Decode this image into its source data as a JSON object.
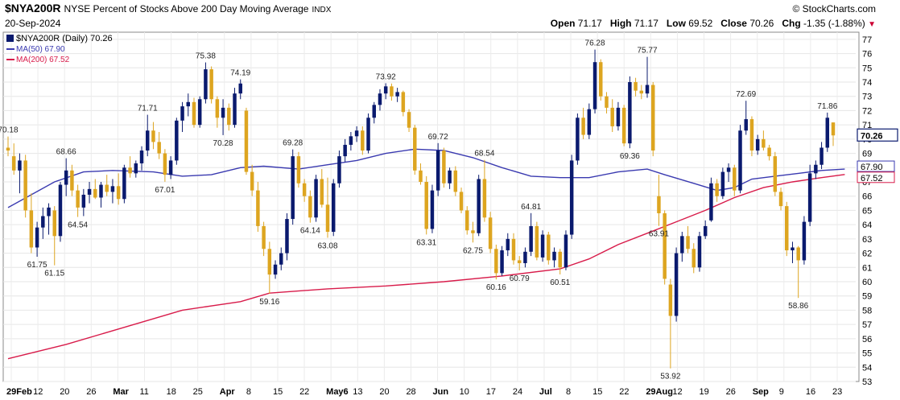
{
  "header": {
    "symbol": "$NYA200R",
    "description": "NYSE Percent of Stocks Above 200 Day Moving Average",
    "exchange": "INDX",
    "brand": "© StockCharts.com",
    "date": "20-Sep-2024",
    "open_label": "Open",
    "open": "71.17",
    "high_label": "High",
    "high": "71.17",
    "low_label": "Low",
    "low": "69.52",
    "close_label": "Close",
    "close": "70.26",
    "chg_label": "Chg",
    "chg": "-1.35 (-1.88%)"
  },
  "legend": {
    "main": "$NYA200R (Daily) 70.26",
    "ma50": "MA(50) 67.90",
    "ma200": "MA(200) 67.52"
  },
  "colors": {
    "up": "#0a1a6e",
    "down": "#dda520",
    "ma50": "#3a3ab0",
    "ma200": "#d81b4a",
    "last_box": "#0a1a6e",
    "ma50_box": "#3a3ab0",
    "ma200_box": "#d81b4a"
  },
  "chart_data": {
    "type": "candlestick",
    "ylim": [
      53,
      77.5
    ],
    "y_ticks": [
      53,
      54,
      55,
      56,
      57,
      58,
      59,
      60,
      61,
      62,
      63,
      64,
      65,
      66,
      67,
      68,
      69,
      70,
      71,
      72,
      73,
      74,
      75,
      76,
      77
    ],
    "x_tick_labels": [
      "29Feb",
      "12",
      "20",
      "26",
      "Mar",
      "11",
      "18",
      "25",
      "Apr",
      "8",
      "15",
      "22",
      "May6",
      "13",
      "20",
      "28",
      "Jun",
      "10",
      "17",
      "24",
      "Jul",
      "8",
      "15",
      "22",
      "29Aug",
      "12",
      "19",
      "26",
      "Sep",
      "9",
      "16",
      "23"
    ],
    "right_tags": [
      {
        "text": "70.26",
        "value": 70.26,
        "kind": "last"
      },
      {
        "text": "67.90",
        "value": 67.9,
        "kind": "ma50"
      },
      {
        "text": "67.52",
        "value": 67.52,
        "kind": "ma200"
      }
    ],
    "annotations": [
      {
        "text": "70.18",
        "value": 70.18
      },
      {
        "text": "61.75",
        "value": 61.75
      },
      {
        "text": "68.66",
        "value": 68.66
      },
      {
        "text": "61.15",
        "value": 61.15
      },
      {
        "text": "64.54",
        "value": 64.54
      },
      {
        "text": "71.71",
        "value": 71.71
      },
      {
        "text": "67.01",
        "value": 67.01
      },
      {
        "text": "75.38",
        "value": 75.38
      },
      {
        "text": "74.19",
        "value": 74.19
      },
      {
        "text": "70.28",
        "value": 70.28
      },
      {
        "text": "59.16",
        "value": 59.16
      },
      {
        "text": "69.28",
        "value": 69.28
      },
      {
        "text": "64.14",
        "value": 64.14
      },
      {
        "text": "63.08",
        "value": 63.08
      },
      {
        "text": "73.92",
        "value": 73.92
      },
      {
        "text": "63.31",
        "value": 63.31
      },
      {
        "text": "69.72",
        "value": 69.72
      },
      {
        "text": "68.54",
        "value": 68.54
      },
      {
        "text": "62.75",
        "value": 62.75
      },
      {
        "text": "60.16",
        "value": 60.16
      },
      {
        "text": "64.81",
        "value": 64.81
      },
      {
        "text": "60.79",
        "value": 60.79
      },
      {
        "text": "60.51",
        "value": 60.51
      },
      {
        "text": "76.28",
        "value": 76.28
      },
      {
        "text": "75.77",
        "value": 75.77
      },
      {
        "text": "69.36",
        "value": 69.36
      },
      {
        "text": "63.91",
        "value": 63.91
      },
      {
        "text": "53.92",
        "value": 53.92
      },
      {
        "text": "72.69",
        "value": 72.69
      },
      {
        "text": "58.86",
        "value": 58.86
      },
      {
        "text": "71.86",
        "value": 71.86
      }
    ],
    "candles": [
      [
        69.4,
        70.18,
        68.8,
        69.2
      ],
      [
        68.8,
        69.7,
        67.5,
        67.8
      ],
      [
        67.8,
        69.0,
        66.2,
        68.5
      ],
      [
        68.5,
        68.9,
        64.5,
        65.0
      ],
      [
        65.0,
        66.2,
        62.0,
        62.4
      ],
      [
        62.4,
        64.2,
        61.75,
        63.8
      ],
      [
        63.8,
        65.2,
        63.0,
        64.6
      ],
      [
        64.6,
        65.5,
        63.3,
        65.2
      ],
      [
        65.0,
        65.3,
        61.15,
        63.2
      ],
      [
        63.2,
        67.0,
        62.8,
        66.8
      ],
      [
        66.8,
        68.66,
        66.0,
        67.8
      ],
      [
        67.8,
        68.2,
        66.0,
        66.4
      ],
      [
        66.4,
        66.8,
        64.54,
        65.2
      ],
      [
        65.2,
        66.5,
        64.6,
        66.1
      ],
      [
        66.1,
        67.0,
        65.5,
        66.5
      ],
      [
        66.5,
        67.2,
        65.8,
        65.9
      ],
      [
        65.9,
        67.0,
        65.2,
        66.8
      ],
      [
        66.8,
        67.5,
        66.0,
        66.3
      ],
      [
        66.3,
        67.2,
        65.5,
        66.7
      ],
      [
        66.7,
        67.6,
        65.4,
        65.8
      ],
      [
        65.8,
        68.2,
        65.5,
        68.0
      ],
      [
        68.0,
        68.8,
        67.3,
        67.6
      ],
      [
        67.6,
        68.5,
        67.3,
        68.3
      ],
      [
        68.3,
        69.5,
        67.8,
        69.2
      ],
      [
        69.2,
        71.71,
        68.8,
        70.6
      ],
      [
        70.6,
        71.2,
        69.3,
        69.8
      ],
      [
        69.8,
        70.5,
        68.6,
        69.0
      ],
      [
        69.0,
        69.3,
        67.01,
        67.5
      ],
      [
        67.5,
        68.8,
        67.2,
        68.5
      ],
      [
        68.5,
        71.5,
        68.2,
        71.3
      ],
      [
        71.3,
        72.6,
        70.5,
        72.3
      ],
      [
        72.3,
        73.2,
        71.6,
        72.6
      ],
      [
        72.6,
        72.9,
        70.8,
        71.0
      ],
      [
        71.0,
        73.0,
        70.8,
        72.8
      ],
      [
        72.8,
        75.38,
        72.5,
        74.9
      ],
      [
        74.9,
        75.1,
        72.5,
        72.8
      ],
      [
        72.8,
        73.0,
        70.8,
        71.5
      ],
      [
        71.5,
        72.8,
        70.28,
        72.2
      ],
      [
        72.2,
        72.5,
        70.6,
        71.0
      ],
      [
        71.0,
        73.6,
        70.8,
        73.2
      ],
      [
        73.2,
        74.19,
        72.8,
        73.9
      ],
      [
        72.0,
        72.2,
        67.5,
        67.7
      ],
      [
        67.7,
        68.2,
        66.0,
        66.4
      ],
      [
        66.4,
        67.0,
        63.5,
        63.9
      ],
      [
        63.9,
        64.2,
        61.8,
        62.3
      ],
      [
        62.3,
        62.8,
        59.16,
        60.5
      ],
      [
        60.5,
        61.5,
        60.2,
        61.2
      ],
      [
        61.2,
        62.4,
        60.8,
        62.0
      ],
      [
        62.0,
        64.8,
        61.5,
        64.4
      ],
      [
        64.4,
        69.28,
        64.0,
        68.8
      ],
      [
        68.8,
        69.1,
        66.6,
        66.9
      ],
      [
        66.9,
        67.2,
        65.6,
        66.0
      ],
      [
        66.0,
        66.4,
        64.14,
        64.5
      ],
      [
        64.5,
        67.5,
        64.2,
        67.2
      ],
      [
        67.2,
        67.9,
        65.2,
        65.4
      ],
      [
        65.4,
        67.3,
        63.08,
        63.5
      ],
      [
        63.5,
        67.2,
        63.2,
        66.9
      ],
      [
        66.9,
        69.2,
        66.6,
        68.8
      ],
      [
        68.8,
        70.0,
        68.4,
        69.6
      ],
      [
        69.6,
        70.5,
        69.2,
        70.2
      ],
      [
        70.2,
        70.9,
        69.8,
        70.6
      ],
      [
        70.6,
        70.9,
        68.9,
        69.2
      ],
      [
        69.2,
        71.8,
        69.0,
        71.5
      ],
      [
        71.5,
        72.6,
        71.1,
        72.4
      ],
      [
        72.4,
        73.5,
        72.0,
        73.2
      ],
      [
        73.2,
        73.92,
        72.8,
        73.7
      ],
      [
        73.7,
        73.9,
        72.7,
        73.0
      ],
      [
        73.0,
        73.6,
        72.6,
        73.3
      ],
      [
        73.3,
        73.4,
        71.6,
        71.9
      ],
      [
        71.9,
        72.1,
        70.5,
        70.8
      ],
      [
        70.8,
        71.0,
        67.5,
        67.8
      ],
      [
        67.8,
        68.3,
        66.8,
        67.0
      ],
      [
        67.0,
        67.4,
        63.31,
        63.7
      ],
      [
        63.7,
        66.8,
        63.4,
        66.4
      ],
      [
        66.4,
        69.72,
        66.0,
        69.2
      ],
      [
        69.2,
        69.4,
        66.6,
        66.9
      ],
      [
        66.9,
        68.0,
        66.5,
        67.8
      ],
      [
        67.8,
        68.1,
        66.0,
        66.3
      ],
      [
        66.3,
        66.6,
        64.8,
        65.0
      ],
      [
        65.0,
        65.3,
        63.3,
        63.6
      ],
      [
        63.6,
        64.2,
        62.75,
        63.4
      ],
      [
        63.4,
        67.5,
        63.2,
        67.2
      ],
      [
        67.2,
        68.54,
        64.2,
        64.5
      ],
      [
        64.5,
        64.9,
        62.0,
        62.3
      ],
      [
        62.3,
        62.6,
        60.16,
        60.6
      ],
      [
        60.6,
        62.5,
        60.4,
        62.2
      ],
      [
        62.2,
        63.4,
        61.8,
        63.0
      ],
      [
        63.0,
        63.4,
        61.2,
        61.5
      ],
      [
        61.5,
        61.8,
        60.79,
        61.3
      ],
      [
        61.3,
        62.4,
        61.0,
        62.1
      ],
      [
        62.1,
        64.81,
        61.8,
        63.9
      ],
      [
        63.9,
        64.2,
        61.5,
        61.7
      ],
      [
        61.7,
        63.6,
        61.4,
        63.3
      ],
      [
        63.3,
        63.5,
        61.2,
        61.5
      ],
      [
        61.5,
        62.4,
        61.0,
        62.1
      ],
      [
        62.1,
        62.3,
        60.51,
        61.0
      ],
      [
        61.0,
        63.6,
        60.8,
        63.3
      ],
      [
        63.3,
        68.9,
        63.0,
        68.5
      ],
      [
        68.5,
        71.8,
        68.2,
        71.5
      ],
      [
        71.5,
        72.2,
        70.0,
        70.3
      ],
      [
        70.3,
        72.5,
        70.0,
        72.1
      ],
      [
        72.1,
        76.28,
        71.8,
        75.4
      ],
      [
        75.4,
        75.6,
        72.7,
        73.0
      ],
      [
        73.0,
        73.3,
        71.8,
        72.2
      ],
      [
        72.2,
        72.8,
        70.5,
        70.9
      ],
      [
        70.9,
        72.6,
        70.6,
        72.2
      ],
      [
        72.2,
        72.4,
        69.5,
        69.7
      ],
      [
        69.7,
        74.4,
        69.36,
        74.0
      ],
      [
        74.0,
        74.3,
        73.0,
        73.4
      ],
      [
        73.4,
        73.8,
        72.8,
        73.2
      ],
      [
        73.2,
        75.77,
        72.9,
        73.8
      ],
      [
        73.8,
        74.0,
        68.8,
        69.2
      ],
      [
        66.0,
        67.5,
        63.91,
        64.8
      ],
      [
        64.8,
        65.0,
        59.8,
        60.2
      ],
      [
        59.8,
        60.2,
        53.92,
        57.6
      ],
      [
        57.6,
        62.4,
        57.2,
        62.0
      ],
      [
        62.0,
        63.5,
        61.4,
        63.2
      ],
      [
        63.2,
        63.9,
        62.0,
        62.3
      ],
      [
        62.3,
        62.7,
        60.6,
        61.0
      ],
      [
        61.0,
        63.5,
        60.7,
        63.2
      ],
      [
        63.2,
        64.3,
        63.0,
        63.9
      ],
      [
        64.3,
        67.3,
        64.2,
        66.9
      ],
      [
        66.9,
        67.2,
        65.6,
        66.0
      ],
      [
        66.0,
        68.0,
        65.8,
        67.7
      ],
      [
        67.7,
        68.3,
        67.0,
        68.0
      ],
      [
        68.0,
        68.2,
        66.0,
        66.4
      ],
      [
        66.4,
        71.0,
        66.2,
        70.6
      ],
      [
        70.6,
        72.69,
        70.3,
        71.4
      ],
      [
        71.4,
        71.6,
        68.8,
        69.2
      ],
      [
        69.2,
        70.3,
        68.9,
        70.0
      ],
      [
        70.0,
        70.6,
        69.2,
        69.4
      ],
      [
        69.4,
        69.6,
        68.5,
        68.8
      ],
      [
        68.8,
        69.1,
        66.0,
        66.3
      ],
      [
        66.3,
        66.6,
        65.0,
        65.3
      ],
      [
        65.3,
        65.6,
        61.8,
        62.2
      ],
      [
        62.2,
        62.8,
        61.3,
        62.4
      ],
      [
        62.4,
        62.5,
        58.86,
        61.5
      ],
      [
        61.5,
        64.6,
        61.2,
        64.2
      ],
      [
        64.2,
        68.2,
        63.9,
        67.6
      ],
      [
        67.6,
        68.5,
        67.2,
        68.2
      ],
      [
        68.2,
        69.8,
        67.9,
        69.4
      ],
      [
        69.4,
        71.86,
        69.1,
        71.5
      ],
      [
        71.17,
        71.17,
        69.52,
        70.26
      ]
    ],
    "ma50": [
      [
        0,
        65.2
      ],
      [
        8,
        67.0
      ],
      [
        13,
        67.7
      ],
      [
        18,
        67.8
      ],
      [
        25,
        67.7
      ],
      [
        30,
        67.4
      ],
      [
        35,
        67.5
      ],
      [
        40,
        68.0
      ],
      [
        44,
        68.1
      ],
      [
        50,
        67.9
      ],
      [
        55,
        68.2
      ],
      [
        60,
        68.5
      ],
      [
        65,
        69.0
      ],
      [
        70,
        69.3
      ],
      [
        75,
        69.2
      ],
      [
        80,
        68.7
      ],
      [
        85,
        68.0
      ],
      [
        90,
        67.4
      ],
      [
        95,
        67.3
      ],
      [
        100,
        67.3
      ],
      [
        105,
        67.7
      ],
      [
        110,
        67.9
      ],
      [
        113,
        67.5
      ],
      [
        118,
        66.9
      ],
      [
        122,
        66.4
      ],
      [
        125,
        66.6
      ],
      [
        128,
        67.2
      ],
      [
        132,
        67.4
      ],
      [
        136,
        67.6
      ],
      [
        140,
        67.8
      ],
      [
        144,
        67.9
      ]
    ],
    "ma200": [
      [
        0,
        54.6
      ],
      [
        10,
        55.6
      ],
      [
        20,
        56.8
      ],
      [
        30,
        58.0
      ],
      [
        40,
        58.6
      ],
      [
        45,
        59.2
      ],
      [
        55,
        59.5
      ],
      [
        65,
        59.7
      ],
      [
        75,
        60.0
      ],
      [
        85,
        60.4
      ],
      [
        95,
        60.9
      ],
      [
        100,
        61.6
      ],
      [
        105,
        62.6
      ],
      [
        110,
        63.4
      ],
      [
        115,
        64.2
      ],
      [
        120,
        65.0
      ],
      [
        125,
        65.9
      ],
      [
        130,
        66.6
      ],
      [
        135,
        67.0
      ],
      [
        140,
        67.3
      ],
      [
        144,
        67.52
      ]
    ]
  }
}
